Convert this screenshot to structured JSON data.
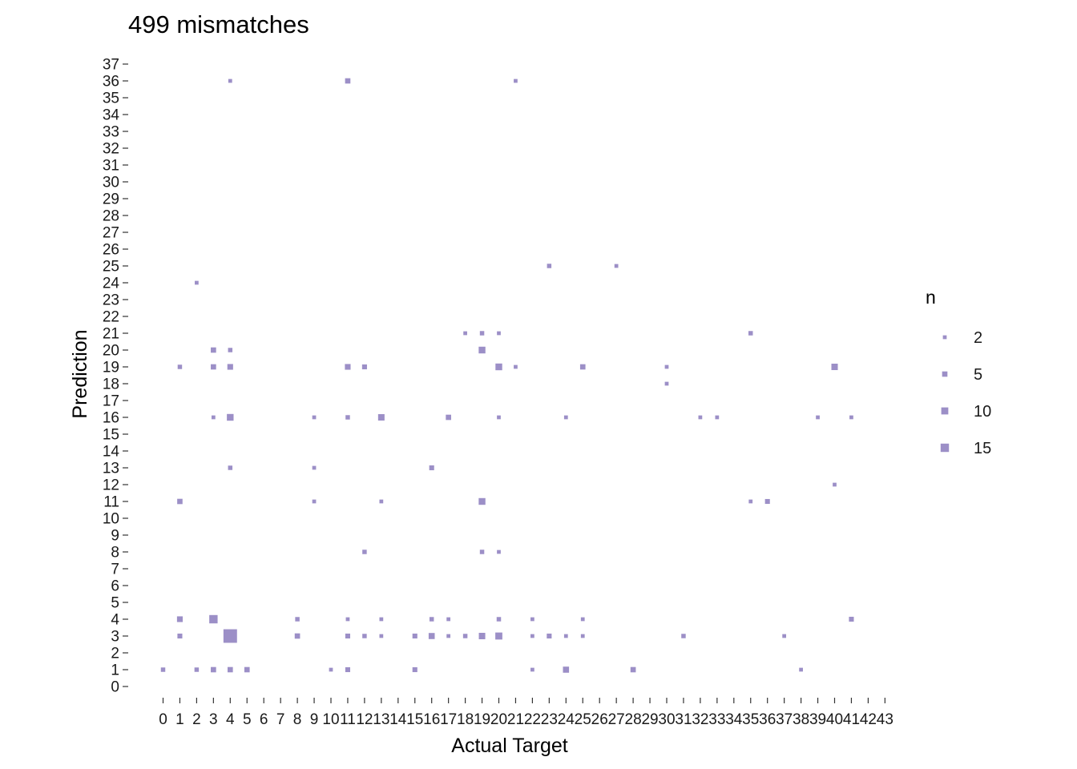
{
  "chart_data": {
    "type": "scatter",
    "title": "499 mismatches",
    "xlabel": "Actual Target",
    "ylabel": "Prediction",
    "x_ticks": [
      0,
      1,
      2,
      3,
      4,
      5,
      6,
      7,
      8,
      9,
      10,
      11,
      12,
      13,
      14,
      15,
      16,
      17,
      18,
      19,
      20,
      21,
      22,
      23,
      24,
      25,
      26,
      27,
      28,
      29,
      30,
      31,
      32,
      33,
      34,
      35,
      36,
      37,
      38,
      39,
      40,
      41,
      42,
      43
    ],
    "y_ticks": [
      0,
      1,
      2,
      3,
      4,
      5,
      6,
      7,
      8,
      9,
      10,
      11,
      12,
      13,
      14,
      15,
      16,
      17,
      18,
      19,
      20,
      21,
      22,
      23,
      24,
      25,
      26,
      27,
      28,
      29,
      30,
      31,
      32,
      33,
      34,
      35,
      36,
      37
    ],
    "xlim": [
      0,
      43
    ],
    "ylim": [
      0,
      37
    ],
    "grid": false,
    "legend": {
      "title": "n",
      "position": "right",
      "values": [
        2,
        5,
        10,
        15
      ]
    },
    "marker": "square",
    "color": "#9c8fc7",
    "points": [
      {
        "x": 4,
        "y": 36,
        "n": 2
      },
      {
        "x": 11,
        "y": 36,
        "n": 5
      },
      {
        "x": 21,
        "y": 36,
        "n": 2
      },
      {
        "x": 23,
        "y": 25,
        "n": 3
      },
      {
        "x": 27,
        "y": 25,
        "n": 2
      },
      {
        "x": 2,
        "y": 24,
        "n": 2
      },
      {
        "x": 18,
        "y": 21,
        "n": 2
      },
      {
        "x": 19,
        "y": 21,
        "n": 3
      },
      {
        "x": 20,
        "y": 21,
        "n": 2
      },
      {
        "x": 35,
        "y": 21,
        "n": 3
      },
      {
        "x": 3,
        "y": 20,
        "n": 5
      },
      {
        "x": 4,
        "y": 20,
        "n": 3
      },
      {
        "x": 19,
        "y": 20,
        "n": 9
      },
      {
        "x": 1,
        "y": 19,
        "n": 3
      },
      {
        "x": 3,
        "y": 19,
        "n": 5
      },
      {
        "x": 4,
        "y": 19,
        "n": 6
      },
      {
        "x": 11,
        "y": 19,
        "n": 6
      },
      {
        "x": 12,
        "y": 19,
        "n": 4
      },
      {
        "x": 20,
        "y": 19,
        "n": 9
      },
      {
        "x": 21,
        "y": 19,
        "n": 2
      },
      {
        "x": 25,
        "y": 19,
        "n": 5
      },
      {
        "x": 30,
        "y": 19,
        "n": 2
      },
      {
        "x": 40,
        "y": 19,
        "n": 8
      },
      {
        "x": 30,
        "y": 18,
        "n": 2
      },
      {
        "x": 3,
        "y": 16,
        "n": 2
      },
      {
        "x": 4,
        "y": 16,
        "n": 9
      },
      {
        "x": 9,
        "y": 16,
        "n": 2
      },
      {
        "x": 11,
        "y": 16,
        "n": 3
      },
      {
        "x": 13,
        "y": 16,
        "n": 8
      },
      {
        "x": 17,
        "y": 16,
        "n": 5
      },
      {
        "x": 20,
        "y": 16,
        "n": 2
      },
      {
        "x": 24,
        "y": 16,
        "n": 2
      },
      {
        "x": 32,
        "y": 16,
        "n": 2
      },
      {
        "x": 33,
        "y": 16,
        "n": 2
      },
      {
        "x": 39,
        "y": 16,
        "n": 2
      },
      {
        "x": 41,
        "y": 16,
        "n": 2
      },
      {
        "x": 4,
        "y": 13,
        "n": 3
      },
      {
        "x": 9,
        "y": 13,
        "n": 2
      },
      {
        "x": 16,
        "y": 13,
        "n": 4
      },
      {
        "x": 40,
        "y": 12,
        "n": 2
      },
      {
        "x": 1,
        "y": 11,
        "n": 5
      },
      {
        "x": 9,
        "y": 11,
        "n": 2
      },
      {
        "x": 13,
        "y": 11,
        "n": 2
      },
      {
        "x": 19,
        "y": 11,
        "n": 9
      },
      {
        "x": 35,
        "y": 11,
        "n": 2
      },
      {
        "x": 36,
        "y": 11,
        "n": 4
      },
      {
        "x": 12,
        "y": 8,
        "n": 3
      },
      {
        "x": 19,
        "y": 8,
        "n": 3
      },
      {
        "x": 20,
        "y": 8,
        "n": 2
      },
      {
        "x": 1,
        "y": 4,
        "n": 6
      },
      {
        "x": 3,
        "y": 4,
        "n": 15
      },
      {
        "x": 8,
        "y": 4,
        "n": 3
      },
      {
        "x": 11,
        "y": 4,
        "n": 2
      },
      {
        "x": 13,
        "y": 4,
        "n": 2
      },
      {
        "x": 16,
        "y": 4,
        "n": 3
      },
      {
        "x": 17,
        "y": 4,
        "n": 2
      },
      {
        "x": 20,
        "y": 4,
        "n": 3
      },
      {
        "x": 22,
        "y": 4,
        "n": 2
      },
      {
        "x": 25,
        "y": 4,
        "n": 2
      },
      {
        "x": 41,
        "y": 4,
        "n": 4
      },
      {
        "x": 1,
        "y": 3,
        "n": 4
      },
      {
        "x": 4,
        "y": 3,
        "n": 45
      },
      {
        "x": 8,
        "y": 3,
        "n": 5
      },
      {
        "x": 11,
        "y": 3,
        "n": 4
      },
      {
        "x": 12,
        "y": 3,
        "n": 3
      },
      {
        "x": 13,
        "y": 3,
        "n": 2
      },
      {
        "x": 15,
        "y": 3,
        "n": 4
      },
      {
        "x": 16,
        "y": 3,
        "n": 7
      },
      {
        "x": 17,
        "y": 3,
        "n": 2
      },
      {
        "x": 18,
        "y": 3,
        "n": 3
      },
      {
        "x": 19,
        "y": 3,
        "n": 8
      },
      {
        "x": 20,
        "y": 3,
        "n": 10
      },
      {
        "x": 22,
        "y": 3,
        "n": 2
      },
      {
        "x": 23,
        "y": 3,
        "n": 4
      },
      {
        "x": 24,
        "y": 3,
        "n": 2
      },
      {
        "x": 25,
        "y": 3,
        "n": 2
      },
      {
        "x": 31,
        "y": 3,
        "n": 3
      },
      {
        "x": 37,
        "y": 3,
        "n": 2
      },
      {
        "x": 0,
        "y": 1,
        "n": 3
      },
      {
        "x": 2,
        "y": 1,
        "n": 3
      },
      {
        "x": 3,
        "y": 1,
        "n": 5
      },
      {
        "x": 4,
        "y": 1,
        "n": 5
      },
      {
        "x": 5,
        "y": 1,
        "n": 5
      },
      {
        "x": 10,
        "y": 1,
        "n": 2
      },
      {
        "x": 11,
        "y": 1,
        "n": 4
      },
      {
        "x": 15,
        "y": 1,
        "n": 4
      },
      {
        "x": 22,
        "y": 1,
        "n": 2
      },
      {
        "x": 24,
        "y": 1,
        "n": 7
      },
      {
        "x": 28,
        "y": 1,
        "n": 5
      },
      {
        "x": 38,
        "y": 1,
        "n": 2
      }
    ]
  }
}
